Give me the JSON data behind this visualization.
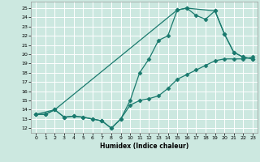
{
  "xlabel": "Humidex (Indice chaleur)",
  "bg_color": "#cce8e0",
  "grid_color": "#ffffff",
  "line_color": "#1a7a6e",
  "xlim": [
    -0.5,
    23.5
  ],
  "ylim": [
    11.5,
    25.7
  ],
  "xticks": [
    0,
    1,
    2,
    3,
    4,
    5,
    6,
    7,
    8,
    9,
    10,
    11,
    12,
    13,
    14,
    15,
    16,
    17,
    18,
    19,
    20,
    21,
    22,
    23
  ],
  "yticks": [
    12,
    13,
    14,
    15,
    16,
    17,
    18,
    19,
    20,
    21,
    22,
    23,
    24,
    25
  ],
  "line1_x": [
    0,
    1,
    2,
    3,
    4,
    5,
    6,
    7,
    8,
    9,
    10,
    11,
    12,
    13,
    14,
    15,
    16,
    17,
    18,
    19,
    20,
    21,
    22,
    23
  ],
  "line1_y": [
    13.5,
    13.5,
    14.0,
    13.2,
    13.3,
    13.2,
    13.0,
    12.8,
    12.0,
    13.0,
    14.5,
    15.0,
    15.2,
    15.5,
    16.3,
    17.3,
    17.8,
    18.3,
    18.8,
    19.3,
    19.5,
    19.5,
    19.5,
    19.7
  ],
  "line2_x": [
    0,
    1,
    2,
    3,
    4,
    5,
    6,
    7,
    8,
    9,
    10,
    11,
    12,
    13,
    14,
    15,
    16,
    17,
    18,
    19,
    20,
    21,
    22,
    23
  ],
  "line2_y": [
    13.5,
    13.5,
    14.0,
    13.2,
    13.3,
    13.2,
    13.0,
    12.8,
    12.0,
    13.0,
    15.0,
    18.0,
    19.5,
    21.5,
    22.0,
    24.8,
    25.0,
    24.2,
    23.8,
    24.7,
    22.2,
    20.2,
    19.7,
    19.5
  ],
  "line3_x": [
    0,
    2,
    15,
    16,
    19,
    20,
    21,
    22,
    23
  ],
  "line3_y": [
    13.5,
    14.0,
    24.8,
    25.0,
    24.7,
    22.2,
    20.2,
    19.7,
    19.5
  ]
}
